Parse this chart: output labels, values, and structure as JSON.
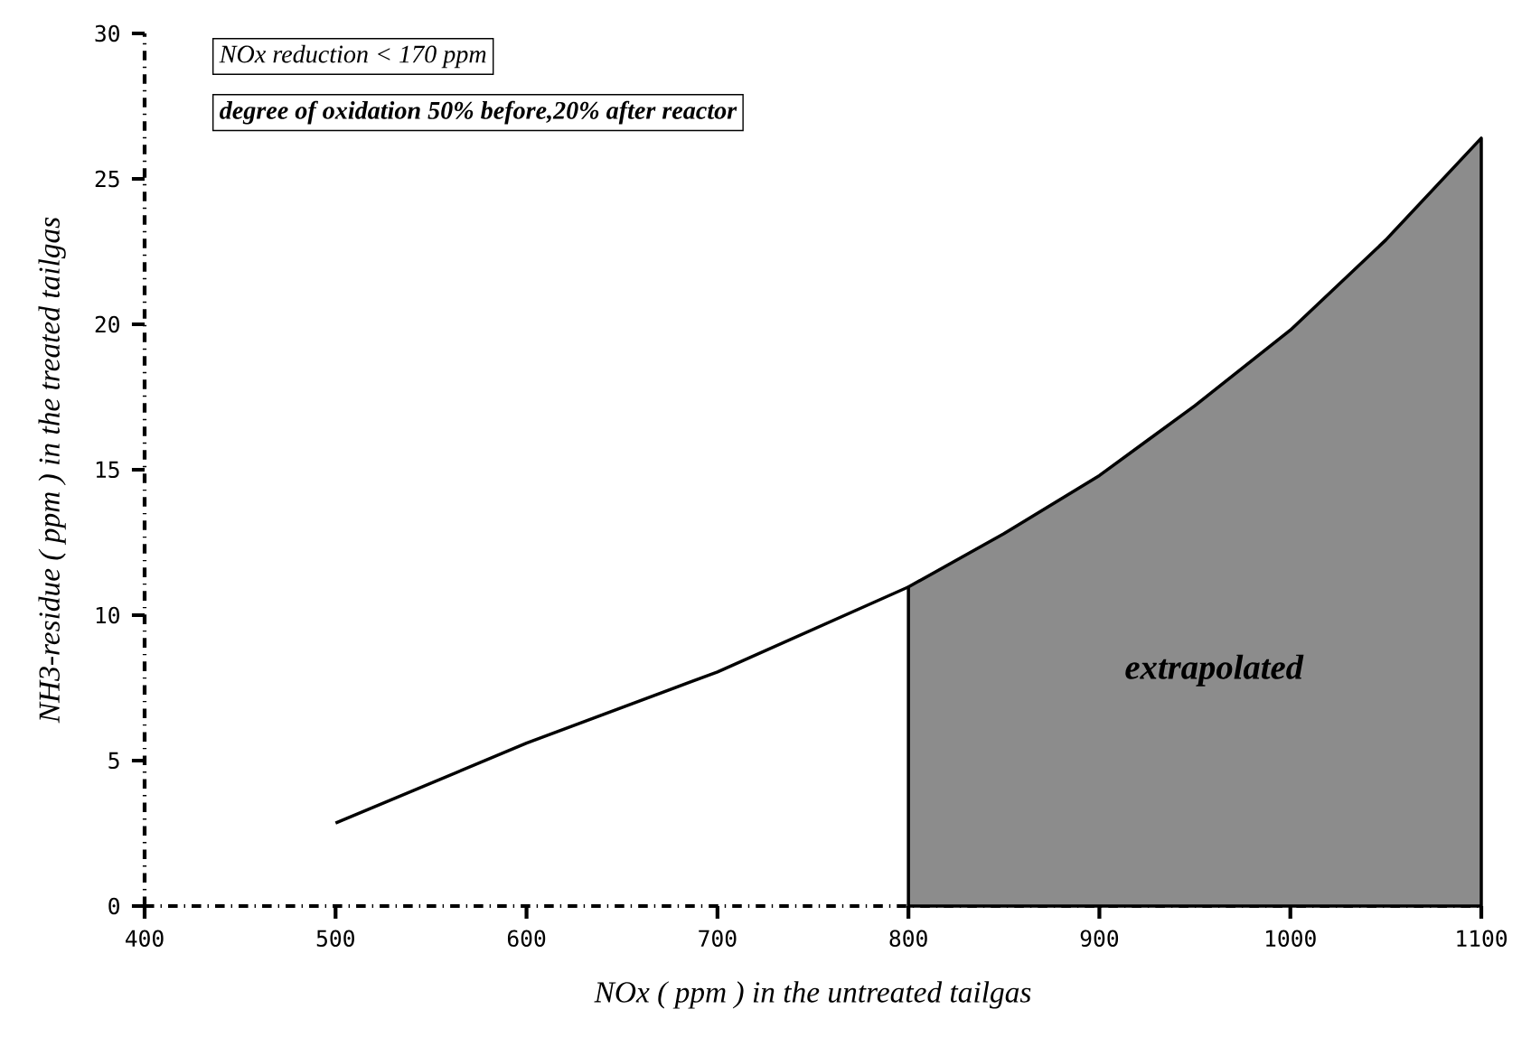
{
  "chart_data": {
    "type": "line",
    "xlabel": "NOx ( ppm ) in the untreated tailgas",
    "ylabel": "NH3-residue ( ppm ) in the treated tailgas",
    "xlim": [
      400,
      1100
    ],
    "xticks": [
      400,
      500,
      600,
      700,
      800,
      900,
      1000,
      1100
    ],
    "ylim": [
      0,
      30
    ],
    "yticks": [
      0,
      5,
      10,
      15,
      20,
      25,
      30
    ],
    "grid": false,
    "annotations": [
      "NOx reduction < 170 ppm",
      "degree of oxidation 50% before,20% after reactor",
      "extrapolated"
    ],
    "series": [
      {
        "color": "#000000",
        "x": [
          500,
          600,
          700,
          800
        ],
        "values": [
          2.85,
          5.6,
          8.05,
          10.97
        ]
      },
      {
        "type": "area",
        "color": "#8c8c8c",
        "x": [
          800,
          850,
          900,
          950,
          1000,
          1050,
          1100
        ],
        "values": [
          10.97,
          12.8,
          14.8,
          17.2,
          19.8,
          22.9,
          26.4
        ]
      }
    ]
  }
}
